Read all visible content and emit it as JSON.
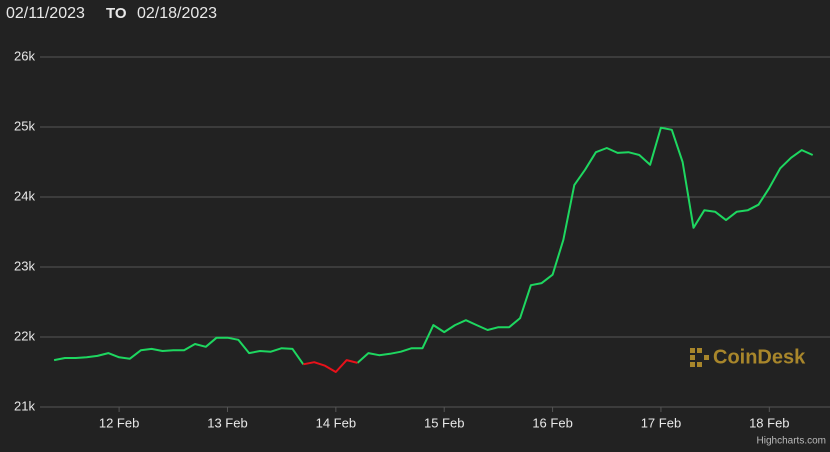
{
  "header": {
    "from": "02/11/2023",
    "to_word": "TO",
    "to": "02/18/2023"
  },
  "chart_data": {
    "type": "line",
    "x": [
      11.4,
      11.5,
      11.6,
      11.7,
      11.8,
      11.9,
      12.0,
      12.1,
      12.2,
      12.3,
      12.4,
      12.5,
      12.6,
      12.7,
      12.8,
      12.9,
      13.0,
      13.1,
      13.2,
      13.3,
      13.4,
      13.5,
      13.6,
      13.7,
      13.8,
      13.9,
      14.0,
      14.1,
      14.2,
      14.3,
      14.4,
      14.5,
      14.6,
      14.7,
      14.8,
      14.9,
      15.0,
      15.1,
      15.2,
      15.3,
      15.4,
      15.5,
      15.6,
      15.7,
      15.8,
      15.9,
      16.0,
      16.1,
      16.2,
      16.3,
      16.4,
      16.5,
      16.6,
      16.7,
      16.8,
      16.9,
      17.0,
      17.1,
      17.2,
      17.3,
      17.4,
      17.5,
      17.6,
      17.7,
      17.8,
      17.9,
      18.0,
      18.1,
      18.2,
      18.3,
      18.4
    ],
    "series": [
      {
        "color": "#1ed760",
        "values": [
          21670,
          21700,
          21700,
          21710,
          21730,
          21770,
          21710,
          21690,
          21810,
          21830,
          21800,
          21810,
          21810,
          21900,
          21860,
          21990,
          21990,
          21960,
          21770,
          21800,
          21790,
          21840,
          21830,
          21610,
          null,
          null,
          null,
          null,
          21630,
          21770,
          21740,
          21760,
          21790,
          21840,
          21840,
          22170,
          22070,
          22170,
          22240,
          22170,
          22100,
          22140,
          22140,
          22270,
          22740,
          22770,
          22890,
          23390,
          24170,
          24390,
          24640,
          24700,
          24630,
          24640,
          24600,
          24460,
          24990,
          24960,
          24500,
          23560,
          23810,
          23790,
          23670,
          23790,
          23810,
          23890,
          24130,
          24410,
          24560,
          24670,
          24600
        ]
      },
      {
        "color": "#e8111a",
        "values": [
          null,
          null,
          null,
          null,
          null,
          null,
          null,
          null,
          null,
          null,
          null,
          null,
          null,
          null,
          null,
          null,
          null,
          null,
          null,
          null,
          null,
          null,
          null,
          21610,
          21640,
          21590,
          21500,
          21670,
          21630,
          null,
          null,
          null,
          null,
          null,
          null,
          null,
          null,
          null,
          null,
          null,
          null,
          null,
          null,
          null,
          null,
          null,
          null,
          null,
          null,
          null,
          null,
          null,
          null,
          null,
          null,
          null,
          null,
          null,
          null,
          null,
          null,
          null,
          null,
          null,
          null,
          null,
          null,
          null,
          null,
          null,
          null
        ]
      }
    ],
    "xlim": [
      11.27,
      18.56
    ],
    "xticks": [
      {
        "value": 12,
        "label": "12 Feb"
      },
      {
        "value": 13,
        "label": "13 Feb"
      },
      {
        "value": 14,
        "label": "14 Feb"
      },
      {
        "value": 15,
        "label": "15 Feb"
      },
      {
        "value": 16,
        "label": "16 Feb"
      },
      {
        "value": 17,
        "label": "17 Feb"
      },
      {
        "value": 18,
        "label": "18 Feb"
      }
    ],
    "ylim": [
      21000,
      26000
    ],
    "yticks": [
      {
        "value": 21000,
        "label": "21k"
      },
      {
        "value": 22000,
        "label": "22k"
      },
      {
        "value": 23000,
        "label": "23k"
      },
      {
        "value": 24000,
        "label": "24k"
      },
      {
        "value": 25000,
        "label": "25k"
      },
      {
        "value": 26000,
        "label": "26k"
      }
    ],
    "grid": true,
    "watermark": "CoinDesk",
    "credits": "Highcharts.com"
  }
}
